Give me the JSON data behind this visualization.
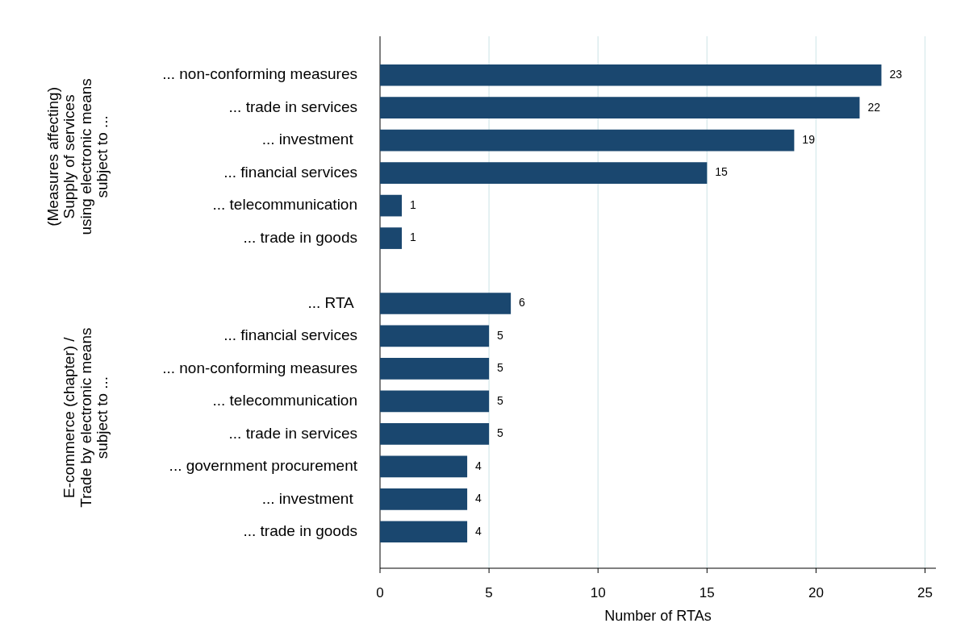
{
  "chart_data": {
    "type": "bar",
    "orientation": "horizontal",
    "xlabel": "Number of RTAs",
    "categories": [
      "... non-conforming measures",
      "... trade in services",
      "... investment ",
      "... financial services",
      "... telecommunication",
      "... trade in goods",
      null,
      "... RTA ",
      "... financial services",
      "... non-conforming measures",
      "... telecommunication",
      "... trade in services",
      "... government procurement",
      "... investment ",
      "... trade in goods"
    ],
    "values": [
      23,
      22,
      19,
      15,
      1,
      1,
      null,
      6,
      5,
      5,
      5,
      5,
      4,
      4,
      4
    ],
    "color": "#1a476f",
    "data_labels": true,
    "xlim": [
      0,
      25.5
    ],
    "xticks": [
      0,
      5,
      10,
      15,
      20,
      25
    ],
    "grid": "x",
    "legend": false,
    "annotations": [
      "(Measures affecting)\nSupply of services\nusing electronic means\nsubject to ...",
      "E-commerce (chapter) /\nTrade by electronic means\nsubject to ..."
    ]
  }
}
